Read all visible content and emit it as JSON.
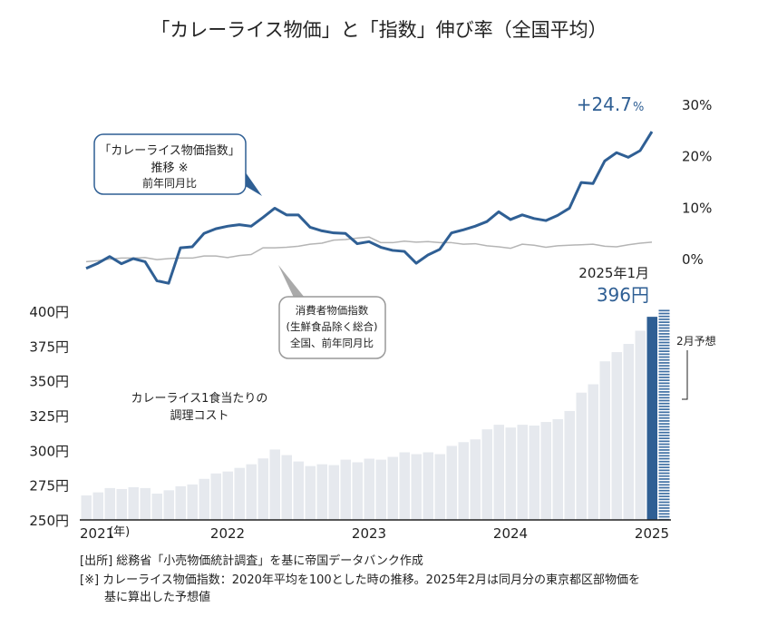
{
  "chart_data": [
    {
      "type": "line",
      "title": "「カレーライス物価」と「指数」伸び率（全国平均）",
      "x_range": [
        "2021-01",
        "2025-01"
      ],
      "ylim": [
        0,
        30
      ],
      "y_ticks": [
        "30%",
        "20%",
        "10%",
        "0%"
      ],
      "y_axis_side": "right",
      "grid": false,
      "series": [
        {
          "name": "「カレーライス物価指数」推移 ※ 前年同月比",
          "color": "#2f5f94",
          "values": [
            -1.9,
            -0.9,
            0.4,
            -1.0,
            0.0,
            -0.6,
            -4.3,
            -4.8,
            2.1,
            2.3,
            4.9,
            5.8,
            6.3,
            6.6,
            6.3,
            8.0,
            9.8,
            8.5,
            8.5,
            6.1,
            5.4,
            5.0,
            4.9,
            2.9,
            3.3,
            2.2,
            1.6,
            1.4,
            -0.9,
            0.7,
            1.8,
            5.0,
            5.6,
            6.3,
            7.2,
            9.1,
            7.6,
            8.5,
            7.8,
            7.4,
            8.4,
            9.8,
            14.8,
            14.6,
            19.0,
            20.6,
            19.7,
            21.0,
            24.7
          ]
        },
        {
          "name": "消費者物価指数（生鮮食品除く総合）全国、前年同月比",
          "color": "#b5b5b5",
          "values": [
            -0.6,
            -0.4,
            -0.1,
            0.1,
            0.1,
            0.2,
            -0.2,
            0.0,
            0.1,
            0.1,
            0.5,
            0.5,
            0.2,
            0.6,
            0.8,
            2.1,
            2.1,
            2.2,
            2.4,
            2.8,
            3.0,
            3.6,
            3.7,
            4.0,
            4.2,
            3.1,
            3.1,
            3.4,
            3.2,
            3.3,
            3.1,
            3.1,
            2.8,
            2.9,
            2.5,
            2.3,
            2.0,
            2.8,
            2.6,
            2.2,
            2.5,
            2.6,
            2.7,
            2.8,
            2.4,
            2.3,
            2.7,
            3.0,
            3.2
          ]
        }
      ],
      "annotation_last": "+24.7",
      "annotation_last_unit": "%"
    },
    {
      "type": "bar",
      "ylabel": "カレーライス1食当たりの 調理コスト",
      "ylim": [
        250,
        400
      ],
      "y_ticks": [
        "400円",
        "375円",
        "350円",
        "325円",
        "300円",
        "275円",
        "250円"
      ],
      "x_tick_labels": [
        "2021",
        "2022",
        "2023",
        "2024",
        "2025"
      ],
      "x_unit": "(年)",
      "values": [
        267.6,
        269.8,
        272.9,
        272.2,
        273.5,
        272.9,
        268.9,
        271.3,
        274.2,
        275.5,
        279.5,
        283.4,
        284.8,
        287.4,
        290.0,
        294.2,
        300.6,
        296.6,
        292.0,
        288.7,
        290.0,
        289.4,
        293.3,
        291.4,
        294.0,
        293.3,
        295.3,
        298.6,
        297.3,
        298.6,
        297.3,
        303.2,
        305.9,
        307.9,
        315.1,
        318.4,
        316.4,
        318.4,
        317.8,
        320.4,
        322.4,
        328.3,
        341.5,
        347.5,
        364.0,
        370.6,
        376.5,
        386.0,
        396.0
      ],
      "forecast_value": 401,
      "colors": {
        "bar": "#e6e9ee",
        "highlight": "#2f5f94",
        "forecast": "#3f6fa3"
      },
      "highlight_label_date": "2025年1月",
      "highlight_label_value": "396円",
      "forecast_label": "2月予想"
    }
  ],
  "callouts": {
    "curry": {
      "line1": "「カレーライス物価指数」",
      "line2": "推移 ※",
      "line3": "前年同月比"
    },
    "cpi": {
      "line1": "消費者物価指数",
      "line2": "(生鮮食品除く総合)",
      "line3": "全国、前年同月比"
    }
  },
  "footer": {
    "source": "[出所]  総務省「小売物価統計調査」を基に帝国データバンク作成",
    "note1": "[※]  カレーライス物価指数：2020年平均を100とした時の推移。2025年2月は同月分の東京都区部物価を",
    "note2": "基に算出した予想値"
  }
}
